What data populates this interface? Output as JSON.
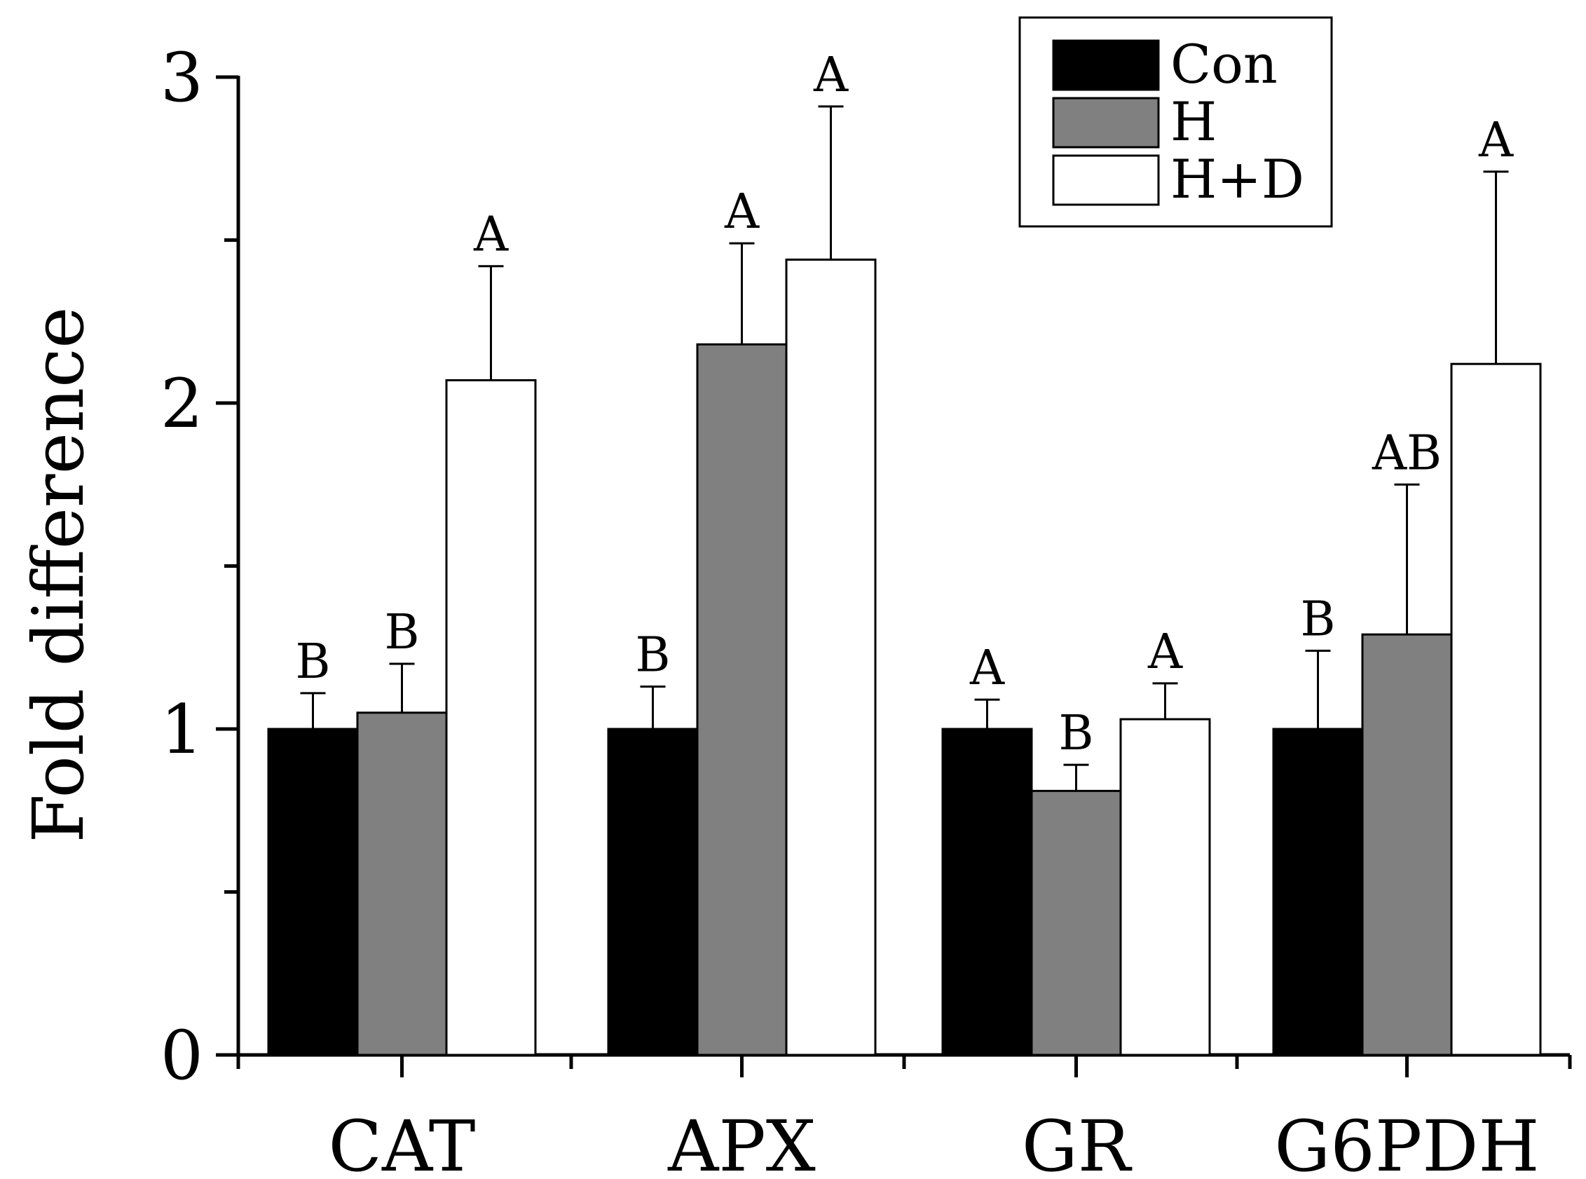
{
  "chart_data": {
    "type": "bar",
    "title": "",
    "xlabel": "",
    "ylabel": "Fold difference",
    "ylim": [
      0,
      3
    ],
    "yticks": [
      "0",
      "1",
      "2",
      "3"
    ],
    "categories": [
      "CAT",
      "APX",
      "GR",
      "G6PDH"
    ],
    "series": [
      {
        "name": "Con",
        "color": "#000000",
        "values": [
          1.0,
          1.0,
          1.0,
          1.0
        ],
        "errors": [
          0.11,
          0.13,
          0.09,
          0.24
        ],
        "letters": [
          "B",
          "B",
          "A",
          "B"
        ]
      },
      {
        "name": "H",
        "color": "#808080",
        "values": [
          1.05,
          2.18,
          0.81,
          1.29
        ],
        "errors": [
          0.15,
          0.31,
          0.08,
          0.46
        ],
        "letters": [
          "B",
          "A",
          "B",
          "AB"
        ]
      },
      {
        "name": "H+D",
        "color": "#ffffff",
        "values": [
          2.07,
          2.44,
          1.03,
          2.12
        ],
        "errors": [
          0.35,
          0.47,
          0.11,
          0.59
        ],
        "letters": [
          "A",
          "A",
          "A",
          "A"
        ]
      }
    ],
    "legend": {
      "position": "top-right",
      "entries": [
        "Con",
        "H",
        "H+D"
      ]
    },
    "grid": false
  }
}
